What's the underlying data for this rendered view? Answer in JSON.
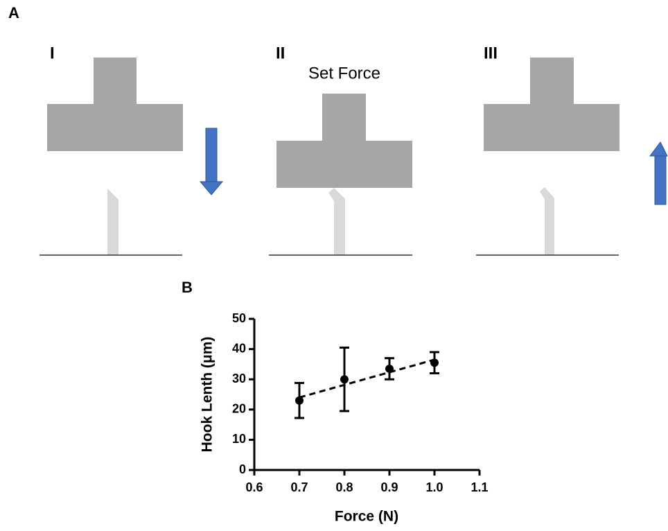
{
  "panels": {
    "a": {
      "label": "A",
      "steps": [
        "I",
        "II",
        "III"
      ],
      "annotation": "Set Force"
    },
    "b": {
      "label": "B"
    }
  },
  "chart_data": {
    "type": "scatter",
    "x": [
      0.7,
      0.8,
      0.9,
      1.0
    ],
    "values": [
      23,
      30,
      33.5,
      35.5
    ],
    "errors": [
      5.8,
      10.5,
      3.5,
      3.5
    ],
    "trendline": {
      "x": [
        0.7,
        1.0
      ],
      "values": [
        24,
        36.5
      ]
    },
    "xlim": [
      0.6,
      1.1
    ],
    "ylim": [
      0,
      50
    ],
    "xticks": [
      0.6,
      0.7,
      0.8,
      0.9,
      {
        "value": 1,
        "label": "1.0"
      },
      1.1
    ],
    "yticks": [
      0,
      10,
      20,
      30,
      40,
      50
    ],
    "xlabel": "Force (N)",
    "ylabel": "Hook Lenth (μm)",
    "color": "#000000"
  }
}
